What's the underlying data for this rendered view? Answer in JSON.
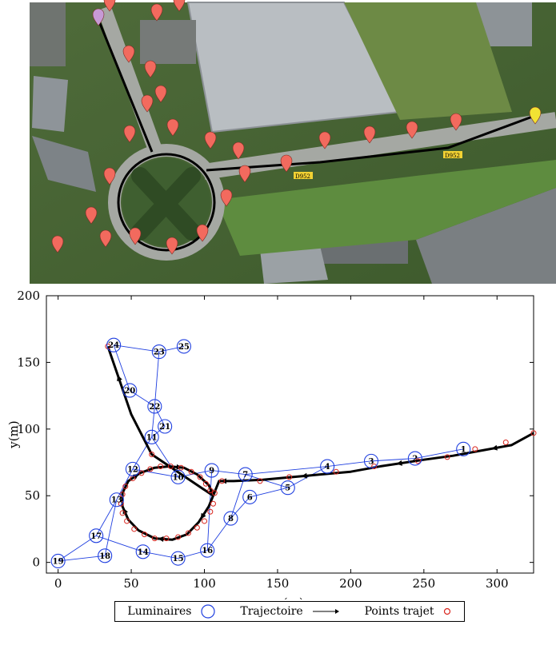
{
  "aerial": {
    "road_sign_1": "D952",
    "road_sign_2": "D952",
    "colors": {
      "marker": "#f26a5e",
      "marker_start": "#c79ad6",
      "marker_end": "#f2e233",
      "route": "#000000"
    }
  },
  "chart_data": {
    "type": "scatter",
    "xlabel": "x(m)",
    "ylabel": "y(m)",
    "xlim": [
      -8,
      325
    ],
    "ylim": [
      -8,
      200
    ],
    "xticks": [
      0,
      50,
      100,
      150,
      200,
      250,
      300
    ],
    "yticks": [
      0,
      50,
      100,
      150,
      200
    ],
    "grid": false,
    "legend": {
      "placement": "bottom-center",
      "entries": [
        "Luminaires",
        "Trajectoire",
        "Points trajet"
      ]
    },
    "colors": {
      "luminaires": "#1f3fe0",
      "trajectoire": "#000000",
      "points": "#d9241c"
    },
    "luminaires": [
      {
        "id": "1",
        "x": 277,
        "y": 85
      },
      {
        "id": "2",
        "x": 244,
        "y": 78
      },
      {
        "id": "3",
        "x": 214,
        "y": 76
      },
      {
        "id": "4",
        "x": 184,
        "y": 72
      },
      {
        "id": "5",
        "x": 157,
        "y": 56
      },
      {
        "id": "6",
        "x": 131,
        "y": 49
      },
      {
        "id": "7",
        "x": 128,
        "y": 66
      },
      {
        "id": "8",
        "x": 118,
        "y": 33
      },
      {
        "id": "9",
        "x": 105,
        "y": 69
      },
      {
        "id": "10",
        "x": 82,
        "y": 64
      },
      {
        "id": "11",
        "x": 64,
        "y": 94
      },
      {
        "id": "12",
        "x": 51,
        "y": 70
      },
      {
        "id": "13",
        "x": 40,
        "y": 47
      },
      {
        "id": "14",
        "x": 58,
        "y": 8
      },
      {
        "id": "15",
        "x": 82,
        "y": 3
      },
      {
        "id": "16",
        "x": 102,
        "y": 9
      },
      {
        "id": "17",
        "x": 26,
        "y": 20
      },
      {
        "id": "18",
        "x": 32,
        "y": 5
      },
      {
        "id": "19",
        "x": 0,
        "y": 1
      },
      {
        "id": "20",
        "x": 49,
        "y": 129
      },
      {
        "id": "21",
        "x": 73,
        "y": 102
      },
      {
        "id": "22",
        "x": 66,
        "y": 117
      },
      {
        "id": "23",
        "x": 69,
        "y": 158
      },
      {
        "id": "24",
        "x": 38,
        "y": 163
      },
      {
        "id": "25",
        "x": 86,
        "y": 162
      }
    ],
    "trajectory": [
      [
        325,
        97
      ],
      [
        310,
        88
      ],
      [
        290,
        84
      ],
      [
        270,
        80
      ],
      [
        250,
        77
      ],
      [
        220,
        72
      ],
      [
        200,
        68
      ],
      [
        180,
        66
      ],
      [
        160,
        64
      ],
      [
        140,
        62
      ],
      [
        120,
        61
      ],
      [
        110,
        61
      ],
      [
        106,
        50
      ],
      [
        103,
        42
      ],
      [
        96,
        30
      ],
      [
        88,
        21
      ],
      [
        78,
        17
      ],
      [
        66,
        18
      ],
      [
        55,
        24
      ],
      [
        48,
        32
      ],
      [
        44,
        42
      ],
      [
        44,
        52
      ],
      [
        48,
        61
      ],
      [
        56,
        67
      ],
      [
        66,
        71
      ],
      [
        76,
        72
      ],
      [
        86,
        71
      ],
      [
        95,
        66
      ],
      [
        103,
        58
      ],
      [
        106,
        50
      ],
      [
        64,
        81
      ],
      [
        50,
        111
      ],
      [
        34,
        162
      ]
    ],
    "route_points": [
      [
        325,
        97
      ],
      [
        306,
        90
      ],
      [
        285,
        85
      ],
      [
        266,
        79
      ],
      [
        246,
        76
      ],
      [
        216,
        72
      ],
      [
        190,
        68
      ],
      [
        158,
        64
      ],
      [
        138,
        61
      ],
      [
        112,
        61
      ],
      [
        107,
        52
      ],
      [
        106,
        44
      ],
      [
        104,
        38
      ],
      [
        100,
        31
      ],
      [
        95,
        26
      ],
      [
        89,
        22
      ],
      [
        82,
        19
      ],
      [
        74,
        18
      ],
      [
        66,
        18
      ],
      [
        59,
        21
      ],
      [
        52,
        25
      ],
      [
        47,
        31
      ],
      [
        44,
        37
      ],
      [
        43,
        44
      ],
      [
        44,
        51
      ],
      [
        46,
        57
      ],
      [
        51,
        63
      ],
      [
        57,
        67
      ],
      [
        63,
        70
      ],
      [
        70,
        72
      ],
      [
        77,
        72
      ],
      [
        84,
        71
      ],
      [
        91,
        68
      ],
      [
        97,
        64
      ],
      [
        101,
        59
      ],
      [
        104,
        54
      ],
      [
        64,
        81
      ],
      [
        34,
        162
      ]
    ],
    "edges": [
      [
        "1",
        "2"
      ],
      [
        "2",
        "3"
      ],
      [
        "3",
        "4"
      ],
      [
        "4",
        "5"
      ],
      [
        "4",
        "7"
      ],
      [
        "5",
        "6"
      ],
      [
        "5",
        "7"
      ],
      [
        "6",
        "8"
      ],
      [
        "7",
        "8"
      ],
      [
        "7",
        "9"
      ],
      [
        "9",
        "10"
      ],
      [
        "9",
        "16"
      ],
      [
        "10",
        "11"
      ],
      [
        "10",
        "12"
      ],
      [
        "11",
        "12"
      ],
      [
        "11",
        "21"
      ],
      [
        "11",
        "22"
      ],
      [
        "12",
        "13"
      ],
      [
        "13",
        "17"
      ],
      [
        "13",
        "18"
      ],
      [
        "14",
        "15"
      ],
      [
        "14",
        "17"
      ],
      [
        "15",
        "16"
      ],
      [
        "17",
        "19"
      ],
      [
        "18",
        "19"
      ],
      [
        "20",
        "24"
      ],
      [
        "20",
        "22"
      ],
      [
        "21",
        "22"
      ],
      [
        "22",
        "23"
      ],
      [
        "23",
        "24"
      ],
      [
        "23",
        "25"
      ],
      [
        "16",
        "8"
      ]
    ]
  }
}
